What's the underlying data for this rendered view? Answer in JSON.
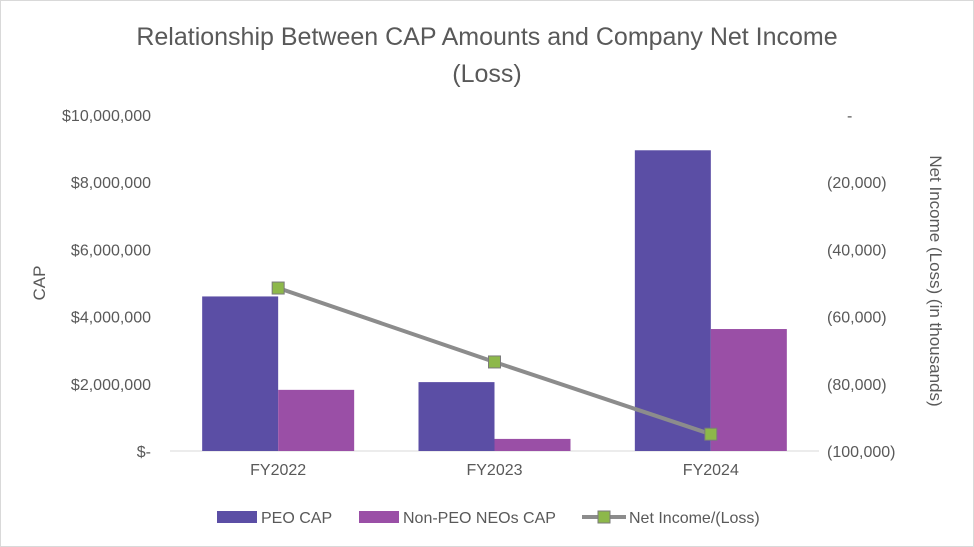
{
  "chart_data": {
    "type": "bar",
    "title_line1": "Relationship Between CAP Amounts and Company Net Income",
    "title_line2": "(Loss)",
    "categories": [
      "FY2022",
      "FY2023",
      "FY2024"
    ],
    "series": [
      {
        "name": "PEO CAP",
        "type": "bar",
        "axis": "left",
        "color": "#5b4ea5",
        "values": [
          4600000,
          2050000,
          8950000
        ]
      },
      {
        "name": "Non-PEO NEOs CAP",
        "type": "bar",
        "axis": "left",
        "color": "#9a4fa6",
        "values": [
          1820000,
          360000,
          3630000
        ]
      },
      {
        "name": "Net Income/(Loss)",
        "type": "line",
        "axis": "right",
        "color": "#8c8c8c",
        "marker_color": "#8db84a",
        "values": [
          -51500,
          -73500,
          -95000
        ]
      }
    ],
    "ylabel_left": "CAP",
    "ylabel_right": "Net Income (Loss) (in thousands)",
    "ylim_left": [
      0,
      10000000
    ],
    "ylim_right": [
      -100000,
      0
    ],
    "yticks_left": [
      {
        "value": 0,
        "label": "$-"
      },
      {
        "value": 2000000,
        "label": "$2,000,000"
      },
      {
        "value": 4000000,
        "label": "$4,000,000"
      },
      {
        "value": 6000000,
        "label": "$6,000,000"
      },
      {
        "value": 8000000,
        "label": "$8,000,000"
      },
      {
        "value": 10000000,
        "label": "$10,000,000"
      }
    ],
    "yticks_right": [
      {
        "value": 0,
        "label": "-"
      },
      {
        "value": -20000,
        "label": "(20,000)"
      },
      {
        "value": -40000,
        "label": "(40,000)"
      },
      {
        "value": -60000,
        "label": "(60,000)"
      },
      {
        "value": -80000,
        "label": "(80,000)"
      },
      {
        "value": -100000,
        "label": "(100,000)"
      }
    ],
    "legend_position": "bottom",
    "grid": false
  }
}
